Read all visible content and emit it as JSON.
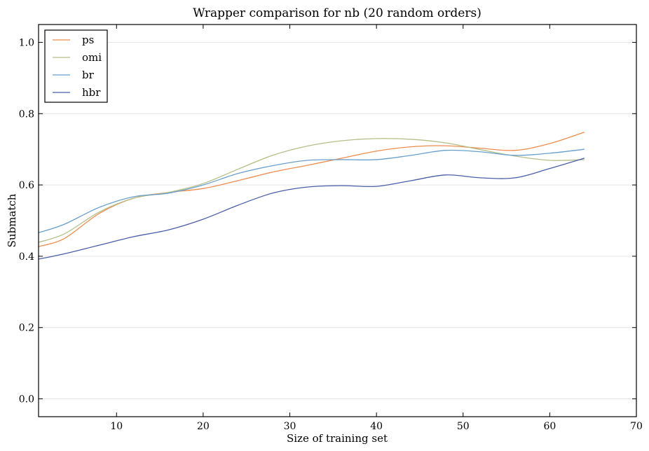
{
  "chart_data": {
    "type": "line",
    "title": "Wrapper comparison for nb (20 random orders)",
    "xlabel": "Size of training set",
    "ylabel": "Submatch",
    "xlim": [
      1,
      70
    ],
    "ylim": [
      -0.05,
      1.05
    ],
    "xticks": [
      10,
      20,
      30,
      40,
      50,
      60,
      70
    ],
    "yticks": [
      0.0,
      0.2,
      0.4,
      0.6,
      0.8,
      1.0
    ],
    "grid": "horizontal",
    "legend_position": "top-left",
    "x": [
      1,
      4,
      8,
      12,
      16,
      20,
      24,
      28,
      32,
      36,
      40,
      44,
      48,
      52,
      56,
      60,
      64
    ],
    "series": [
      {
        "name": "ps",
        "color": "#ee8d4f",
        "values": [
          0.427,
          0.45,
          0.52,
          0.563,
          0.579,
          0.59,
          0.612,
          0.636,
          0.655,
          0.675,
          0.695,
          0.707,
          0.71,
          0.703,
          0.697,
          0.716,
          0.748
        ]
      },
      {
        "name": "omi",
        "color": "#b3bf88",
        "values": [
          0.439,
          0.463,
          0.524,
          0.563,
          0.579,
          0.604,
          0.644,
          0.683,
          0.709,
          0.724,
          0.73,
          0.728,
          0.718,
          0.699,
          0.681,
          0.669,
          0.671
        ]
      },
      {
        "name": "br",
        "color": "#6a9fcc",
        "values": [
          0.466,
          0.49,
          0.537,
          0.567,
          0.577,
          0.6,
          0.632,
          0.654,
          0.669,
          0.671,
          0.671,
          0.683,
          0.697,
          0.693,
          0.683,
          0.689,
          0.7
        ]
      },
      {
        "name": "hbr",
        "color": "#4a5faa",
        "values": [
          0.392,
          0.407,
          0.431,
          0.455,
          0.474,
          0.504,
          0.543,
          0.577,
          0.594,
          0.598,
          0.596,
          0.612,
          0.628,
          0.62,
          0.62,
          0.646,
          0.675
        ]
      }
    ]
  }
}
